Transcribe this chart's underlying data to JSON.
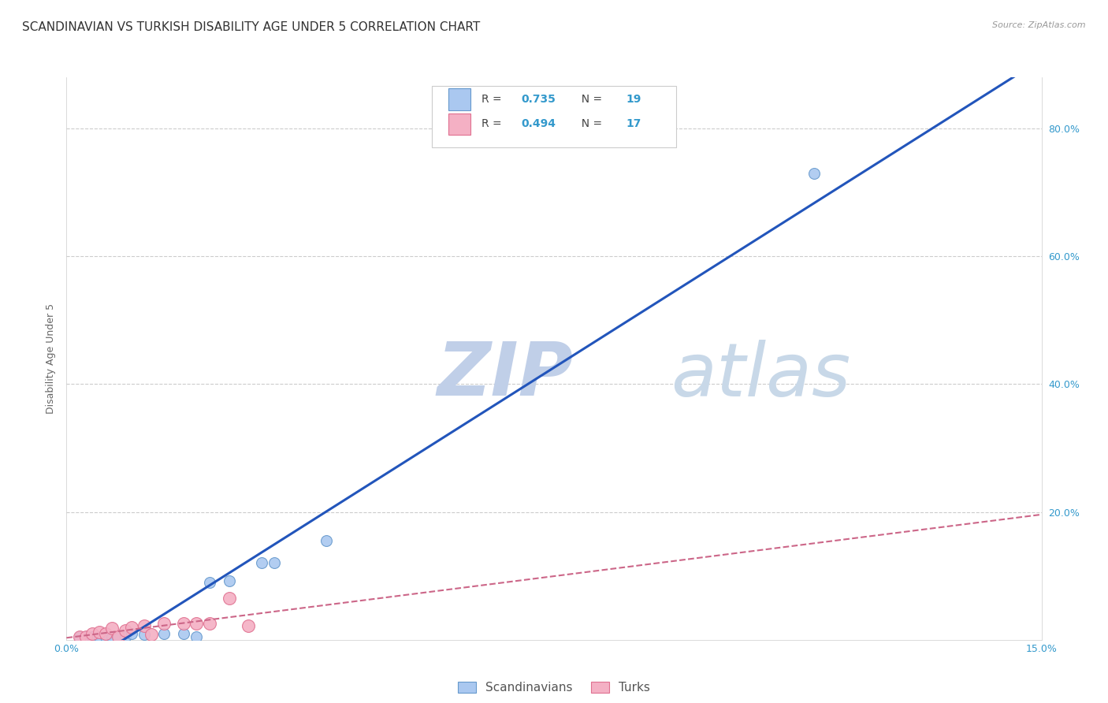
{
  "title": "SCANDINAVIAN VS TURKISH DISABILITY AGE UNDER 5 CORRELATION CHART",
  "source": "Source: ZipAtlas.com",
  "ylabel": "Disability Age Under 5",
  "xlim": [
    0.0,
    0.15
  ],
  "ylim": [
    0.0,
    0.88
  ],
  "scandinavian_color": "#aac8f0",
  "scandinavian_edge": "#6699cc",
  "turkish_color": "#f4b0c4",
  "turkish_edge": "#e07090",
  "line_blue": "#2255bb",
  "line_pink": "#cc6688",
  "watermark_zip_color": "#c0d0e8",
  "watermark_atlas_color": "#c8d8e8",
  "grid_color": "#cccccc",
  "background_color": "#ffffff",
  "title_fontsize": 11,
  "axis_label_fontsize": 9,
  "tick_fontsize": 9,
  "scandinavian_x": [
    0.002,
    0.003,
    0.004,
    0.005,
    0.006,
    0.007,
    0.008,
    0.009,
    0.01,
    0.012,
    0.015,
    0.018,
    0.02,
    0.022,
    0.025,
    0.03,
    0.032,
    0.04,
    0.115
  ],
  "scandinavian_y": [
    0.005,
    0.005,
    0.005,
    0.005,
    0.005,
    0.005,
    0.005,
    0.005,
    0.01,
    0.008,
    0.01,
    0.01,
    0.005,
    0.09,
    0.092,
    0.12,
    0.12,
    0.155,
    0.73
  ],
  "turkish_x": [
    0.002,
    0.003,
    0.004,
    0.005,
    0.006,
    0.007,
    0.008,
    0.009,
    0.01,
    0.012,
    0.013,
    0.015,
    0.018,
    0.02,
    0.022,
    0.025,
    0.028
  ],
  "turkish_y": [
    0.005,
    0.005,
    0.01,
    0.012,
    0.01,
    0.018,
    0.005,
    0.015,
    0.02,
    0.022,
    0.008,
    0.025,
    0.025,
    0.025,
    0.025,
    0.065,
    0.022
  ],
  "scand_size": 100,
  "turk_size": 130,
  "ytick_vals": [
    0.0,
    0.2,
    0.4,
    0.6,
    0.8
  ],
  "xtick_vals": [
    0.0,
    0.15
  ]
}
